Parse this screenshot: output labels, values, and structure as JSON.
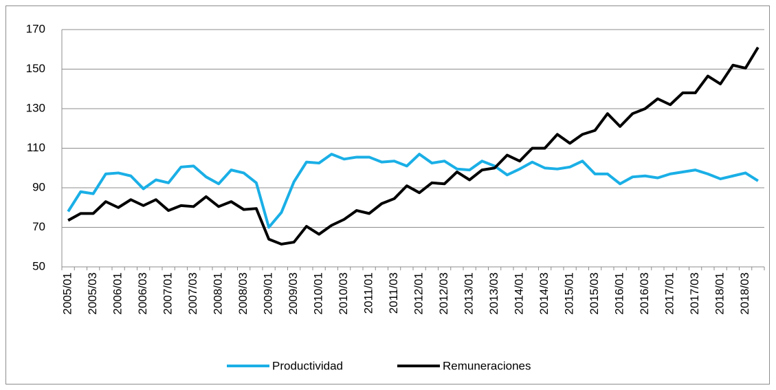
{
  "chart_data": {
    "type": "line",
    "categories": [
      "2005/01",
      null,
      "2005/03",
      null,
      "2006/01",
      null,
      "2006/03",
      null,
      "2007/01",
      null,
      "2007/03",
      null,
      "2008/01",
      null,
      "2008/03",
      null,
      "2009/01",
      null,
      "2009/03",
      null,
      "2010/01",
      null,
      "2010/03",
      null,
      "2011/01",
      null,
      "2011/03",
      null,
      "2012/01",
      null,
      "2012/03",
      null,
      "2013/01",
      null,
      "2013/03",
      null,
      "2014/01",
      null,
      "2014/03",
      null,
      "2015/01",
      null,
      "2015/03",
      null,
      "2016/01",
      null,
      "2016/03",
      null,
      "2017/01",
      null,
      "2017/03",
      null,
      "2018/01",
      null,
      "2018/03",
      null
    ],
    "series": [
      {
        "name": "Productividad",
        "color": "#1aafe6",
        "values": [
          78,
          88,
          87,
          97,
          97.5,
          96,
          89.5,
          94,
          92.5,
          100.5,
          101,
          95.5,
          92,
          99,
          97.5,
          92.5,
          70,
          77.5,
          93,
          103,
          102.5,
          107,
          104.5,
          105.5,
          105.5,
          103,
          103.5,
          101,
          107,
          102.5,
          103.5,
          99.5,
          99,
          103.5,
          101,
          96.5,
          99.5,
          103,
          100,
          99.5,
          100.5,
          103.5,
          97,
          97,
          92,
          95.5,
          96,
          95,
          97,
          98,
          99,
          97,
          94.5,
          96,
          97.5,
          93.5
        ]
      },
      {
        "name": "Remuneraciones",
        "color": "#000000",
        "values": [
          73.5,
          77,
          77,
          83,
          80,
          84,
          81,
          84,
          78.5,
          81,
          80.5,
          85.5,
          80.5,
          83,
          79,
          79.5,
          64,
          61.5,
          62.5,
          70.5,
          66.5,
          71,
          74,
          78.5,
          77,
          82,
          84.5,
          91,
          87.5,
          92.5,
          92,
          98,
          94,
          99,
          100,
          106.5,
          103.5,
          110,
          110,
          117,
          112.5,
          117,
          119,
          127.5,
          121,
          127.5,
          130,
          135,
          132,
          138,
          138,
          146.5,
          142.5,
          152,
          150.5,
          161
        ]
      }
    ],
    "ylim": [
      50,
      170
    ],
    "yticks": [
      50,
      70,
      90,
      110,
      130,
      150,
      170
    ],
    "grid": true
  }
}
